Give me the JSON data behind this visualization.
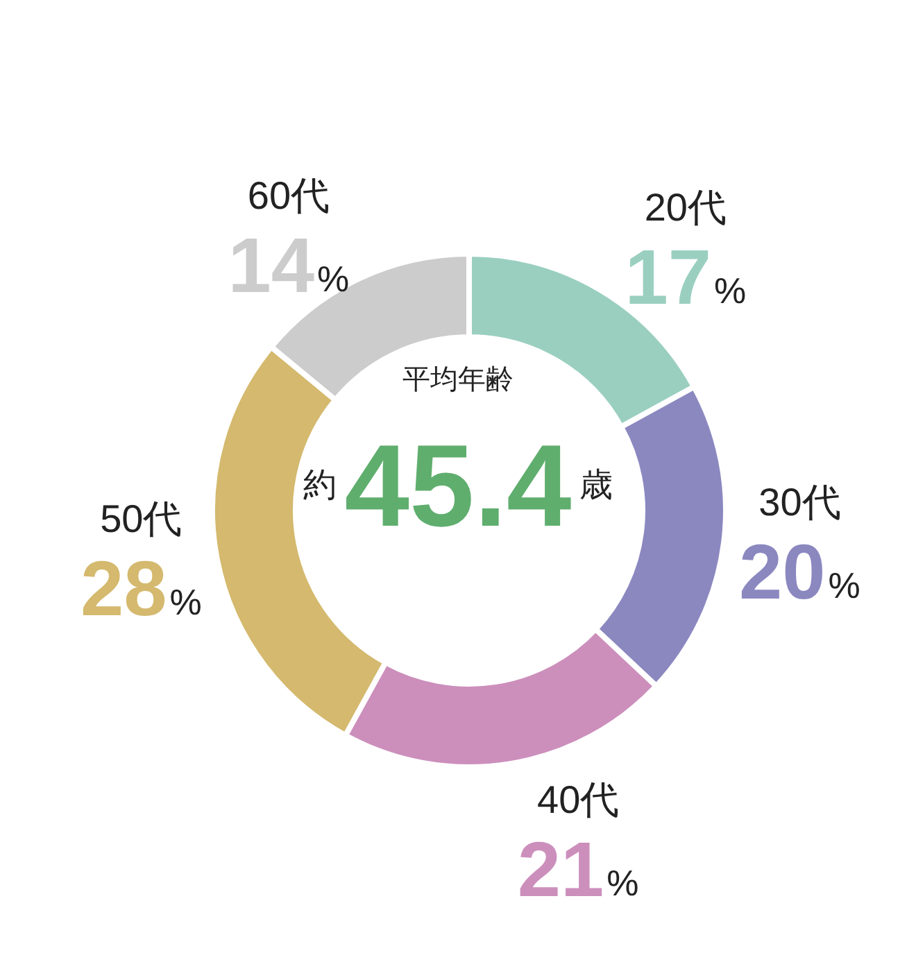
{
  "chart_data": {
    "type": "donut",
    "categories": [
      "20代",
      "30代",
      "40代",
      "50代",
      "60代"
    ],
    "values": [
      17,
      20,
      21,
      28,
      14
    ],
    "colors": [
      "#9acfbf",
      "#8b88c0",
      "#cc8fbc",
      "#d4b96e",
      "#cccccc"
    ],
    "value_labels": [
      "17%",
      "20%",
      "21%",
      "28%",
      "14%"
    ],
    "legend": false,
    "annotations": [
      "平均年齢",
      "約45.4歳"
    ]
  }
}
